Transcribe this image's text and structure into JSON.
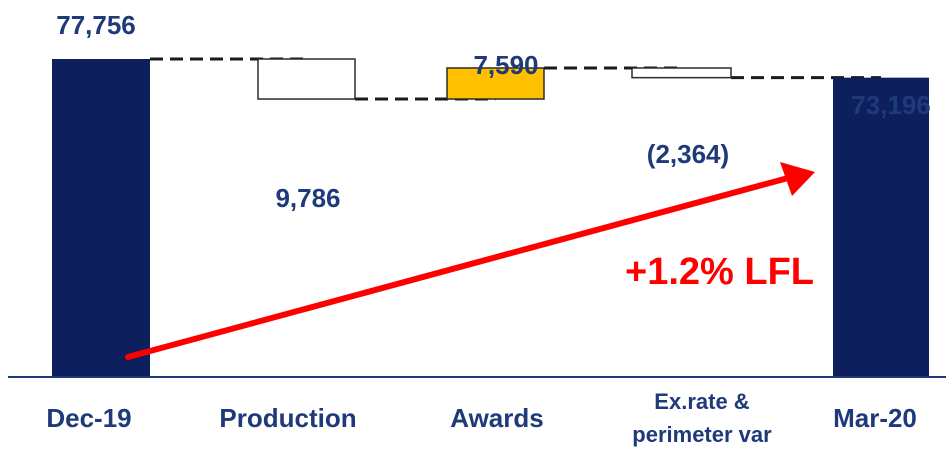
{
  "chart_data": {
    "type": "waterfall",
    "categories": [
      "Dec-19",
      "Production",
      "Awards",
      "Ex.rate &\nperimeter var",
      "Mar-20"
    ],
    "category_lines": [
      [
        "Dec-19"
      ],
      [
        "Production"
      ],
      [
        "Awards"
      ],
      [
        "Ex.rate &",
        "perimeter var"
      ],
      [
        "Mar-20"
      ]
    ],
    "items": [
      {
        "category": "Dec-19",
        "kind": "total",
        "value": 77756,
        "label": "77,756",
        "fill": "#0d1f5c",
        "stroke": "#0d1f5c"
      },
      {
        "category": "Production",
        "kind": "decrease",
        "value": -9786,
        "label": "9,786",
        "fill": "#ffffff",
        "stroke": "#2b2b2b"
      },
      {
        "category": "Awards",
        "kind": "increase",
        "value": 7590,
        "label": "7,590",
        "fill": "#ffc000",
        "stroke": "#2b2b2b"
      },
      {
        "category": "Ex.rate &\nperimeter var",
        "kind": "decrease",
        "value": -2364,
        "label": "(2,364)",
        "fill": "#ffffff",
        "stroke": "#2b2b2b"
      },
      {
        "category": "Mar-20",
        "kind": "total",
        "value": 73196,
        "label": "73,196",
        "fill": "#0d1f5c",
        "stroke": "#0d1f5c"
      }
    ],
    "annotation": "+1.2% LFL",
    "ylim": [
      0,
      77756
    ],
    "grid": false,
    "legend": "none",
    "colors": {
      "total": "#0d1f5c",
      "label": "#1f3a7a",
      "accent_arrow": "#ff0000",
      "annotation": "#ff0000",
      "increase": "#ffc000",
      "connector": "#1a1a1a",
      "axis": "#1f3a7a"
    }
  }
}
